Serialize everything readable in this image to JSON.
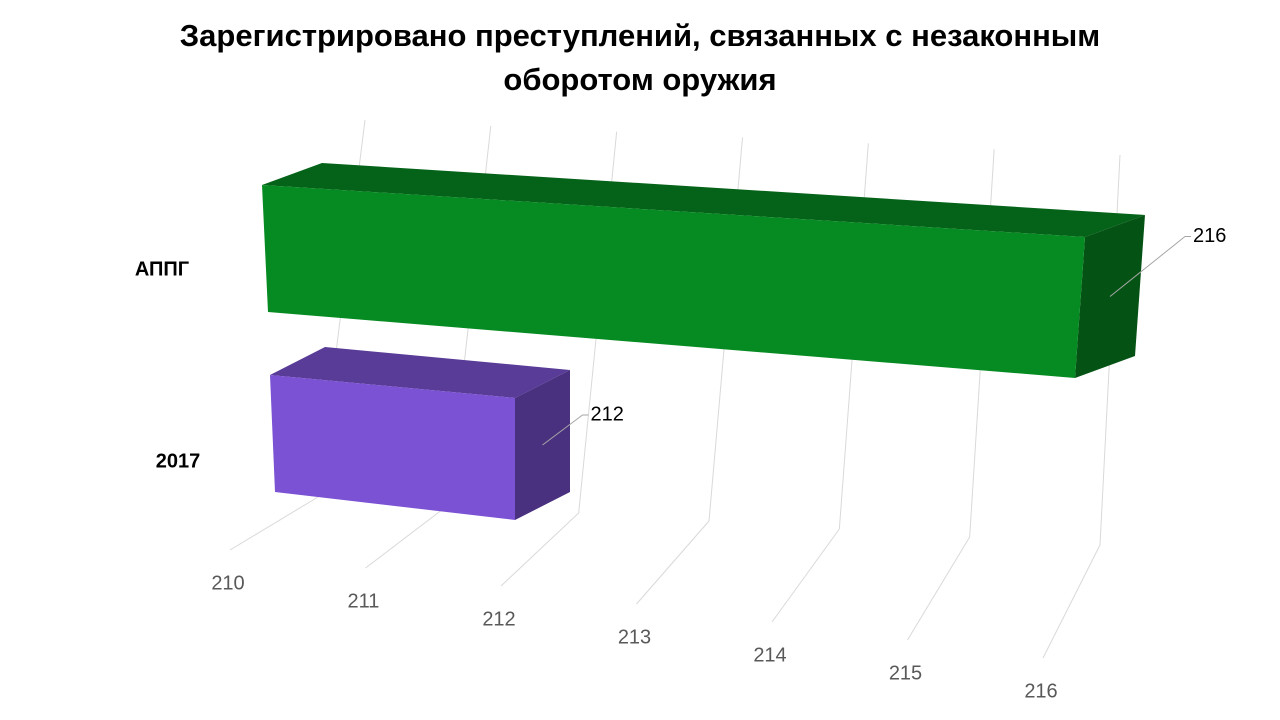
{
  "chart_data": {
    "type": "bar3d",
    "title": "Зарегистрировано преступлений, связанных с незаконным оборотом оружия",
    "categories": [
      "2017",
      "АППГ"
    ],
    "values": [
      212,
      216
    ],
    "colors": [
      "#7b52d3",
      "#068a22"
    ],
    "xlim": [
      210,
      216
    ],
    "xticks": [
      210,
      211,
      212,
      213,
      214,
      215,
      216
    ],
    "grid": true
  }
}
